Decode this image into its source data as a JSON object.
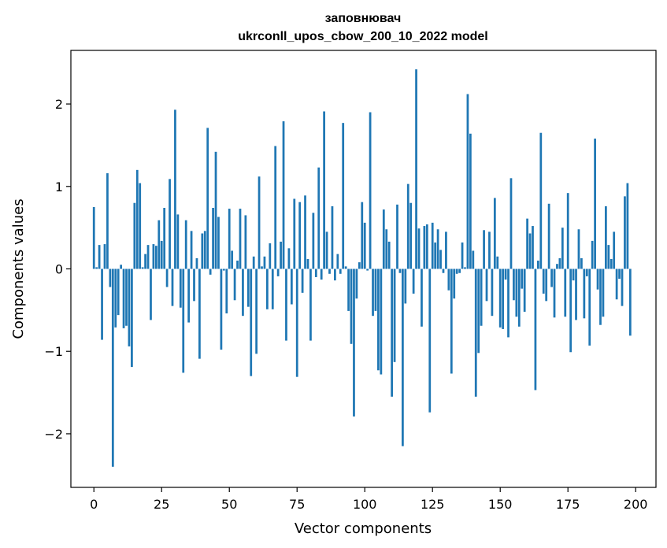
{
  "chart_data": {
    "type": "bar",
    "title_lines": [
      "заповнювач",
      "ukrconll_upos_cbow_200_10_2022 model"
    ],
    "xlabel": "Vector components",
    "ylabel": "Components values",
    "xlim": [
      -8.5,
      207.5
    ],
    "ylim": [
      -2.65,
      2.65
    ],
    "x_ticks": [
      0,
      25,
      50,
      75,
      100,
      125,
      150,
      175,
      200
    ],
    "y_ticks": [
      -2,
      -1,
      0,
      1,
      2
    ],
    "y_tick_labels": [
      "−2",
      "−1",
      "0",
      "1",
      "2"
    ],
    "grid": false,
    "bar_color": "#1f77b4",
    "values": [
      0.75,
      0.02,
      0.29,
      -0.86,
      0.3,
      1.16,
      -0.22,
      -2.4,
      -0.71,
      -0.56,
      0.05,
      -0.72,
      -0.69,
      -0.94,
      -1.19,
      0.8,
      1.2,
      1.04,
      0.02,
      0.18,
      0.29,
      -0.62,
      0.3,
      0.28,
      0.59,
      0.34,
      0.74,
      -0.22,
      1.09,
      -0.45,
      1.93,
      0.66,
      -0.47,
      -1.26,
      0.59,
      -0.65,
      0.46,
      -0.39,
      0.13,
      -1.09,
      0.43,
      0.46,
      1.71,
      -0.07,
      0.74,
      1.42,
      0.63,
      -0.98,
      -0.02,
      -0.54,
      0.73,
      0.22,
      -0.38,
      0.1,
      0.73,
      -0.57,
      0.65,
      -0.46,
      -1.3,
      0.15,
      -1.03,
      1.12,
      0.03,
      0.15,
      -0.49,
      0.31,
      -0.49,
      1.49,
      -0.09,
      0.33,
      1.79,
      -0.87,
      0.25,
      -0.43,
      0.85,
      -1.31,
      0.81,
      -0.29,
      0.89,
      0.12,
      -0.87,
      0.68,
      -0.1,
      1.23,
      -0.13,
      1.91,
      0.45,
      -0.06,
      0.76,
      -0.14,
      0.18,
      -0.06,
      1.77,
      0.03,
      -0.51,
      -0.91,
      -1.79,
      -0.36,
      0.08,
      0.81,
      0.56,
      -0.02,
      1.9,
      -0.57,
      -0.51,
      -1.23,
      -1.28,
      0.72,
      0.48,
      0.33,
      -1.55,
      -1.13,
      0.78,
      -0.05,
      -2.15,
      -0.42,
      1.03,
      0.8,
      -0.3,
      2.42,
      0.49,
      -0.7,
      0.52,
      0.54,
      -1.74,
      0.56,
      0.32,
      0.48,
      0.23,
      -0.05,
      0.45,
      -0.26,
      -1.27,
      -0.36,
      -0.06,
      -0.05,
      0.32,
      0.02,
      2.12,
      1.64,
      0.22,
      -1.55,
      -1.02,
      -0.69,
      0.47,
      -0.39,
      0.45,
      -0.57,
      0.86,
      0.15,
      -0.71,
      -0.73,
      -0.13,
      -0.83,
      1.1,
      -0.38,
      -0.58,
      -0.7,
      -0.24,
      -0.52,
      0.61,
      0.43,
      0.52,
      -1.47,
      0.1,
      1.65,
      -0.3,
      -0.39,
      0.79,
      -0.22,
      -0.59,
      0.06,
      0.13,
      0.5,
      -0.58,
      0.92,
      -1.01,
      -0.14,
      -0.62,
      0.48,
      0.13,
      -0.6,
      -0.09,
      -0.93,
      0.34,
      1.58,
      -0.25,
      -0.68,
      -0.58,
      0.76,
      0.29,
      0.12,
      0.45,
      -0.37,
      -0.12,
      -0.45,
      0.88,
      1.04,
      -0.81,
      0.0
    ]
  }
}
